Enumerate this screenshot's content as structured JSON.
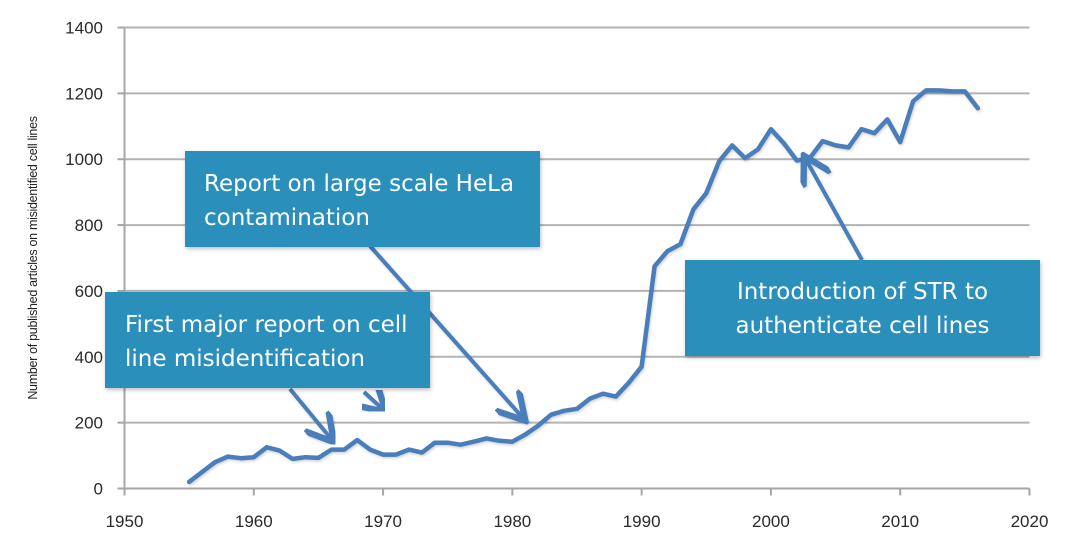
{
  "chart_data": {
    "type": "line",
    "title": "",
    "xlabel": "",
    "ylabel": "Number of published articles on misidentified cell lines",
    "xlim": [
      1950,
      2020
    ],
    "ylim": [
      0,
      1400
    ],
    "x_ticks": [
      1950,
      1960,
      1970,
      1980,
      1990,
      2000,
      2010,
      2020
    ],
    "y_ticks": [
      0,
      200,
      400,
      600,
      800,
      1000,
      1200,
      1400
    ],
    "grid": "horizontal",
    "legend": "none",
    "series": [
      {
        "name": "Published articles on misidentified cell lines",
        "color": "#4a7ebb",
        "x": [
          1955,
          1956,
          1957,
          1958,
          1959,
          1960,
          1961,
          1962,
          1963,
          1964,
          1965,
          1966,
          1967,
          1968,
          1969,
          1970,
          1971,
          1972,
          1973,
          1974,
          1975,
          1976,
          1977,
          1978,
          1979,
          1980,
          1981,
          1982,
          1983,
          1984,
          1985,
          1986,
          1987,
          1988,
          1989,
          1990,
          1991,
          1992,
          1993,
          1994,
          1995,
          1996,
          1997,
          1998,
          1999,
          2000,
          2001,
          2002,
          2003,
          2004,
          2005,
          2006,
          2007,
          2008,
          2009,
          2010,
          2011,
          2012,
          2013,
          2014,
          2015,
          2016
        ],
        "values": [
          20,
          50,
          80,
          97,
          92,
          95,
          125,
          115,
          90,
          95,
          93,
          118,
          118,
          147,
          118,
          103,
          103,
          118,
          109,
          139,
          139,
          133,
          142,
          152,
          145,
          142,
          164,
          191,
          224,
          236,
          242,
          273,
          288,
          279,
          321,
          370,
          675,
          721,
          742,
          848,
          897,
          994,
          1042,
          1003,
          1030,
          1091,
          1048,
          996,
          1003,
          1055,
          1042,
          1036,
          1091,
          1079,
          1121,
          1052,
          1176,
          1209,
          1209,
          1206,
          1206,
          1155
        ]
      }
    ],
    "annotations": [
      {
        "id": "first",
        "lines": [
          "First major report on cell",
          "line misidentification"
        ],
        "arrows_to": [
          [
            1966,
            150
          ],
          [
            1970,
            240
          ]
        ]
      },
      {
        "id": "hela",
        "lines": [
          "Report on large scale HeLa",
          "contamination"
        ],
        "arrows_to": [
          [
            1980.8,
            215
          ]
        ]
      },
      {
        "id": "str",
        "lines": [
          "Introduction of STR to",
          "authenticate cell lines"
        ],
        "arrows_to": [
          [
            2002.7,
            1000
          ]
        ]
      }
    ],
    "colors": {
      "annotation_box": "#2b8fbb",
      "arrow": "#4a7ebb",
      "grid": "#b3b3b3",
      "axis": "#a6a6a6"
    }
  }
}
